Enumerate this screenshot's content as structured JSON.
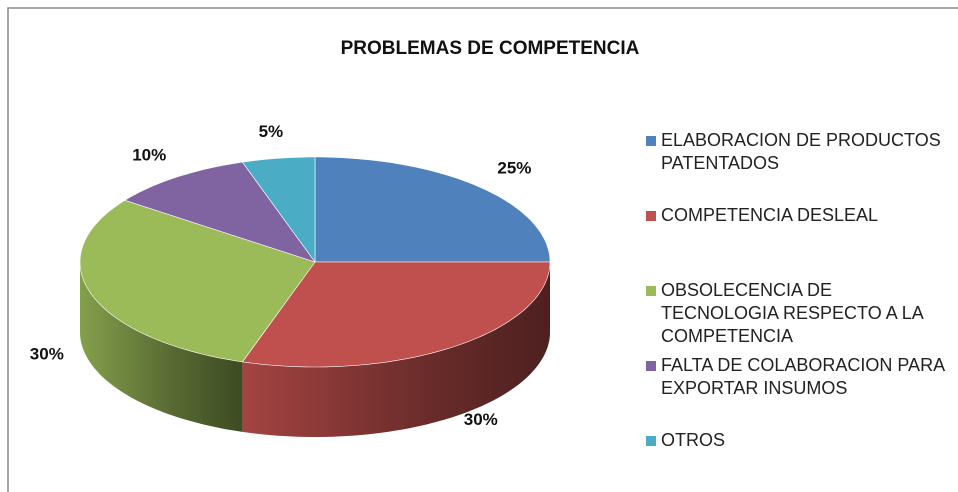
{
  "chart_data": {
    "type": "pie3d",
    "title": "PROBLEMAS DE COMPETENCIA",
    "categories": [
      "ELABORACION DE PRODUCTOS PATENTADOS",
      "COMPETENCIA DESLEAL",
      "OBSOLECENCIA DE TECNOLOGIA RESPECTO A LA COMPETENCIA",
      "FALTA DE COLABORACION PARA EXPORTAR INSUMOS",
      "OTROS"
    ],
    "values": [
      25,
      30,
      30,
      10,
      5
    ],
    "value_labels": [
      "25%",
      "30%",
      "30%",
      "10%",
      "5%"
    ],
    "colors": [
      "#4f81bd",
      "#c0504d",
      "#9bbb59",
      "#8064a2",
      "#4bacc6"
    ],
    "legend": "right"
  }
}
